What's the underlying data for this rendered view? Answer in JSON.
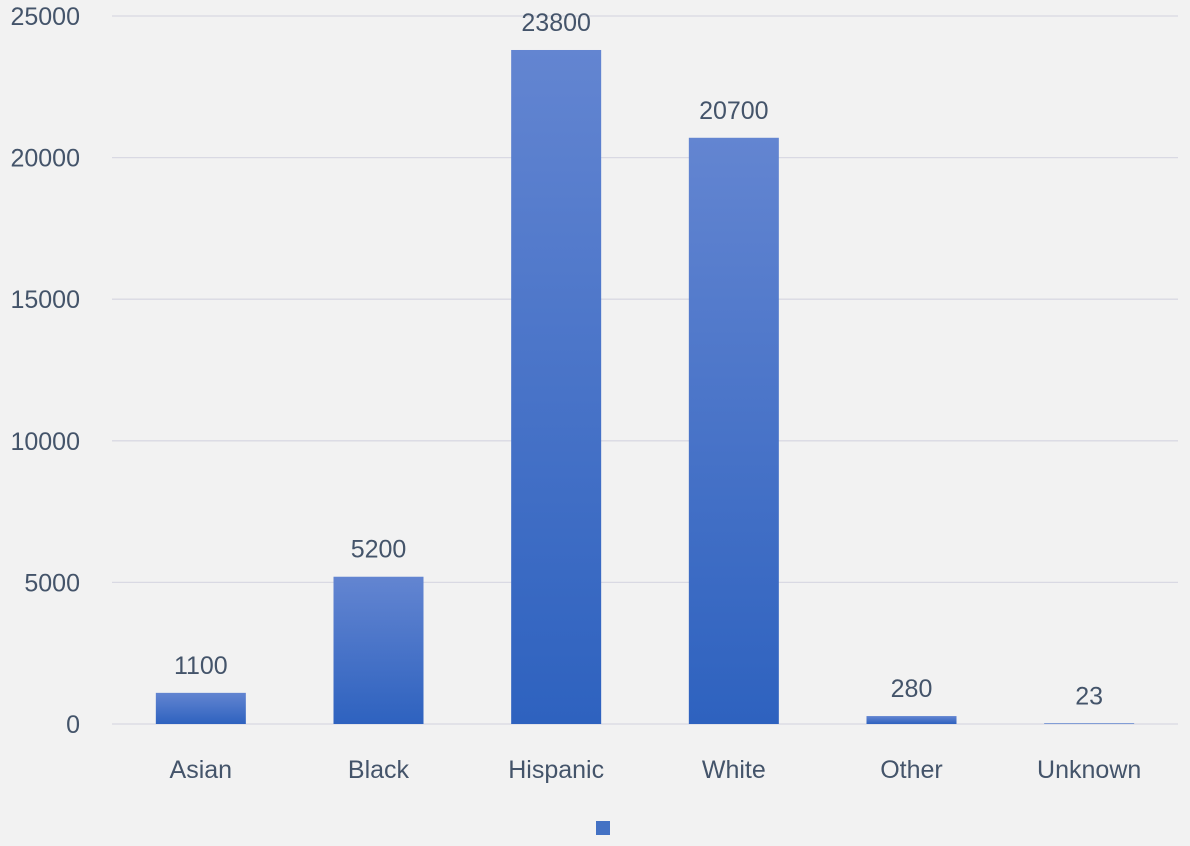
{
  "chart_data": {
    "type": "bar",
    "categories": [
      "Asian",
      "Black",
      "Hispanic",
      "White",
      "Other",
      "Unknown"
    ],
    "values": [
      1100,
      5200,
      23800,
      20700,
      280,
      23
    ],
    "data_labels": [
      "1100",
      "5200",
      "23800",
      "20700",
      "280",
      "23"
    ],
    "y_ticks": [
      "0",
      "5000",
      "10000",
      "15000",
      "20000",
      "25000"
    ],
    "ylim": [
      0,
      25000
    ],
    "grid": true,
    "legend": "bottom",
    "title": "",
    "xlabel": "",
    "ylabel": ""
  },
  "colors": {
    "background": "#f2f2f2",
    "gridline": "#d9d9e3",
    "bar_top": "#6385d1",
    "bar_bottom": "#2e62bf",
    "text": "#44546a",
    "legend_swatch": "#4472c4"
  }
}
